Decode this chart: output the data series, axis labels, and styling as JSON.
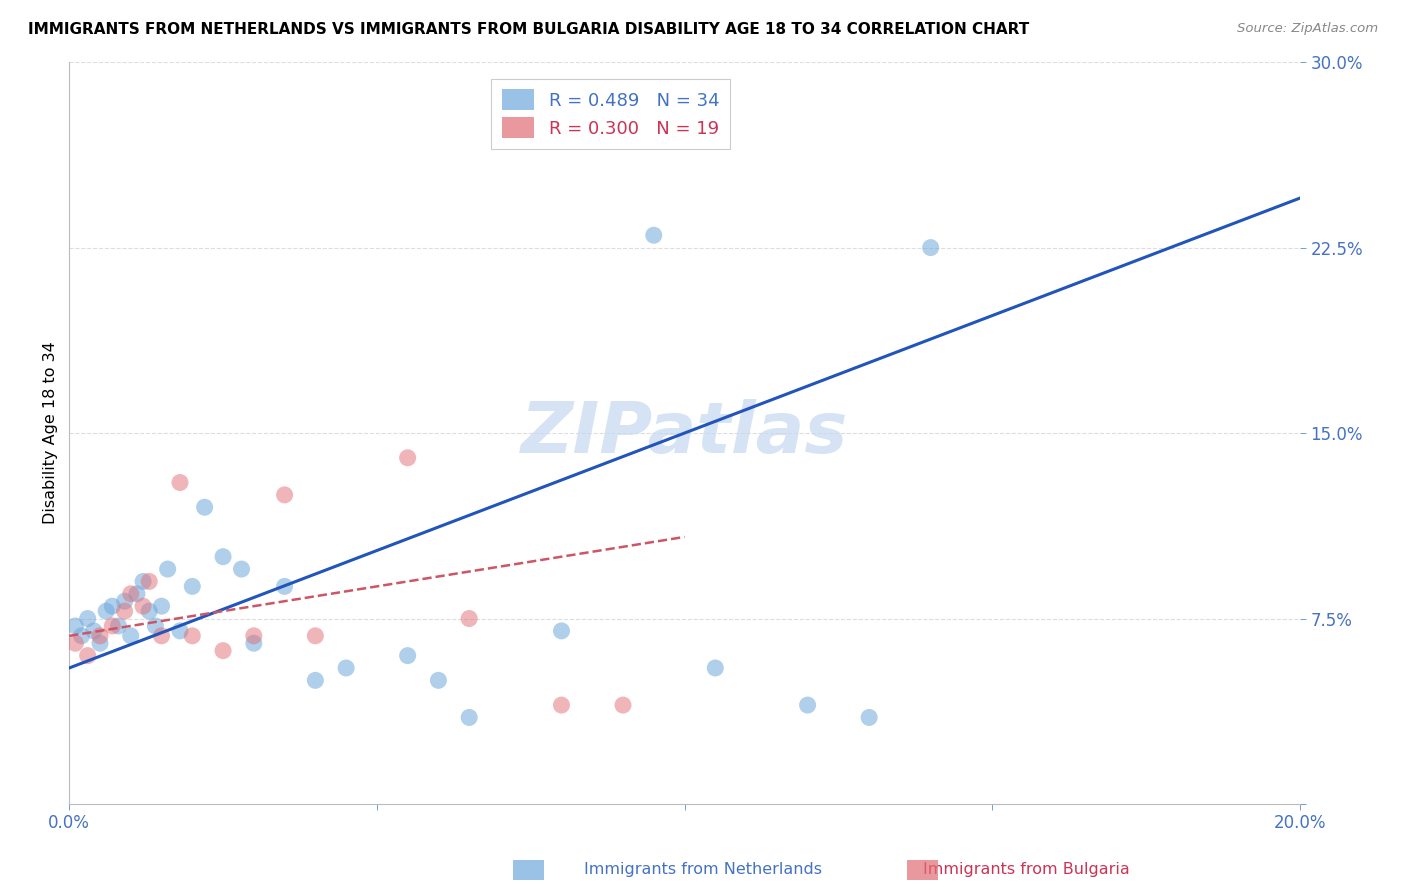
{
  "title": "IMMIGRANTS FROM NETHERLANDS VS IMMIGRANTS FROM BULGARIA DISABILITY AGE 18 TO 34 CORRELATION CHART",
  "source": "Source: ZipAtlas.com",
  "ylabel": "Disability Age 18 to 34",
  "xlim": [
    0.0,
    0.2
  ],
  "ylim": [
    0.0,
    0.3
  ],
  "xticks": [
    0.0,
    0.05,
    0.1,
    0.15,
    0.2
  ],
  "yticks": [
    0.0,
    0.075,
    0.15,
    0.225,
    0.3
  ],
  "netherlands_color": "#6fa8dc",
  "bulgaria_color": "#e06c75",
  "netherlands_line_color": "#2255bb",
  "bulgaria_line_color": "#cc5566",
  "netherlands_R": 0.489,
  "netherlands_N": 34,
  "bulgaria_R": 0.3,
  "bulgaria_N": 19,
  "nl_x": [
    0.001,
    0.002,
    0.003,
    0.004,
    0.005,
    0.006,
    0.007,
    0.008,
    0.009,
    0.01,
    0.011,
    0.012,
    0.013,
    0.014,
    0.015,
    0.016,
    0.018,
    0.02,
    0.022,
    0.025,
    0.028,
    0.03,
    0.035,
    0.04,
    0.045,
    0.055,
    0.06,
    0.065,
    0.08,
    0.095,
    0.105,
    0.12,
    0.13,
    0.14
  ],
  "nl_y": [
    0.072,
    0.068,
    0.075,
    0.07,
    0.065,
    0.078,
    0.08,
    0.072,
    0.082,
    0.068,
    0.085,
    0.09,
    0.078,
    0.072,
    0.08,
    0.095,
    0.07,
    0.088,
    0.12,
    0.1,
    0.095,
    0.065,
    0.088,
    0.05,
    0.055,
    0.06,
    0.05,
    0.035,
    0.07,
    0.23,
    0.055,
    0.04,
    0.035,
    0.225
  ],
  "bg_x": [
    0.001,
    0.003,
    0.005,
    0.007,
    0.009,
    0.01,
    0.012,
    0.013,
    0.015,
    0.018,
    0.02,
    0.025,
    0.03,
    0.035,
    0.04,
    0.055,
    0.065,
    0.08,
    0.09
  ],
  "bg_y": [
    0.065,
    0.06,
    0.068,
    0.072,
    0.078,
    0.085,
    0.08,
    0.09,
    0.068,
    0.13,
    0.068,
    0.062,
    0.068,
    0.125,
    0.068,
    0.14,
    0.075,
    0.04,
    0.04
  ],
  "nl_line_x0": 0.0,
  "nl_line_y0": 0.055,
  "nl_line_x1": 0.2,
  "nl_line_y1": 0.245,
  "bg_line_x0": 0.0,
  "bg_line_y0": 0.068,
  "bg_line_x1": 0.1,
  "bg_line_y1": 0.108,
  "watermark_text": "ZIPatlas",
  "watermark_color": "#c5d8f0",
  "background_color": "#ffffff",
  "grid_color": "#dddddd"
}
